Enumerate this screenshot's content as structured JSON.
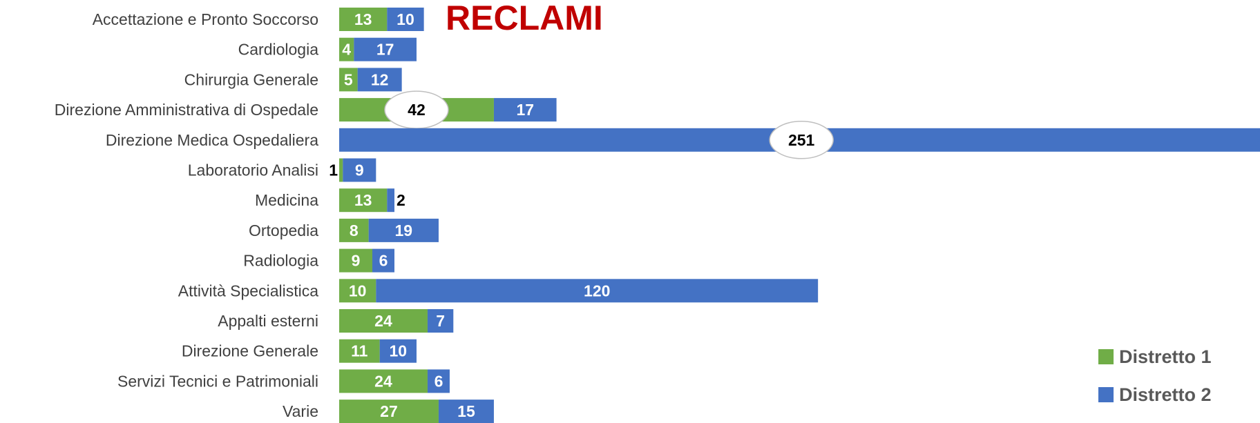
{
  "chart_data": {
    "type": "stacked-barh",
    "title": "RECLAMI",
    "categories": [
      "Accettazione e Pronto Soccorso",
      "Cardiologia",
      "Chirurgia Generale",
      "Direzione Amministrativa di Ospedale",
      "Direzione Medica Ospedaliera",
      "Laboratorio Analisi",
      "Medicina",
      "Ortopedia",
      "Radiologia",
      "Attività Specialistica",
      "Appalti esterni",
      "Direzione Generale",
      "Servizi Tecnici e Patrimoniali",
      "Varie"
    ],
    "series": [
      {
        "name": "Distretto 1",
        "color": "#70ad47",
        "values": [
          13,
          4,
          5,
          42,
          null,
          1,
          13,
          8,
          9,
          10,
          24,
          11,
          24,
          27
        ]
      },
      {
        "name": "Distretto 2",
        "color": "#4472c4",
        "values": [
          10,
          17,
          12,
          17,
          251,
          9,
          2,
          19,
          6,
          120,
          7,
          10,
          6,
          15
        ]
      }
    ],
    "xlim": [
      0,
      250
    ],
    "legend": "bottom-right"
  }
}
